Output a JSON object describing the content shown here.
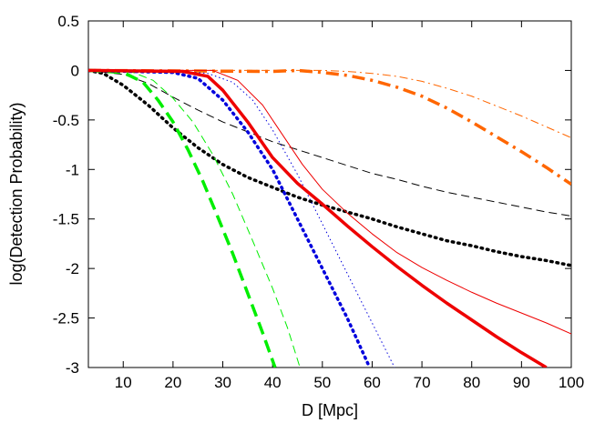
{
  "chart_data": {
    "type": "line",
    "xlabel": "D [Mpc]",
    "ylabel": "log(Detection Probability)",
    "xlim": [
      3,
      100
    ],
    "ylim": [
      -3,
      0.5
    ],
    "grid": false,
    "legend": "none",
    "xticks": [
      10,
      20,
      30,
      40,
      50,
      60,
      70,
      80,
      90,
      100
    ],
    "yticks": [
      0.5,
      0,
      -0.5,
      -1,
      -1.5,
      -2,
      -2.5,
      -3
    ],
    "xtick_labels": [
      "10",
      "20",
      "30",
      "40",
      "50",
      "60",
      "70",
      "80",
      "90",
      "100"
    ],
    "ytick_labels": [
      "0.5",
      "0",
      "-0.5",
      "-1",
      "-1.5",
      "-2",
      "-2.5",
      "-3"
    ],
    "series": [
      {
        "color": "#ff6600",
        "style": "dash-dot",
        "weight": "thin",
        "x": [
          3,
          40,
          50,
          55,
          60,
          65,
          70,
          75,
          80,
          85,
          90,
          95,
          100
        ],
        "y": [
          0,
          0,
          0,
          -0.01,
          -0.03,
          -0.06,
          -0.11,
          -0.18,
          -0.26,
          -0.36,
          -0.46,
          -0.57,
          -0.68
        ]
      },
      {
        "color": "#ff6600",
        "style": "dash-dot",
        "weight": "thick",
        "x": [
          3,
          40,
          45,
          50,
          55,
          60,
          65,
          70,
          75,
          80,
          85,
          90,
          95,
          100
        ],
        "y": [
          0,
          -0.01,
          0,
          -0.02,
          -0.05,
          -0.1,
          -0.17,
          -0.26,
          -0.38,
          -0.52,
          -0.67,
          -0.82,
          -0.98,
          -1.15
        ]
      },
      {
        "color": "#000000",
        "style": "dotted",
        "weight": "thick",
        "x": [
          3,
          6,
          10,
          15,
          20,
          25,
          30,
          35,
          40,
          45,
          50,
          55,
          60,
          65,
          70,
          75,
          80,
          85,
          90,
          95,
          100
        ],
        "y": [
          0,
          -0.03,
          -0.15,
          -0.35,
          -0.58,
          -0.78,
          -0.95,
          -1.08,
          -1.18,
          -1.28,
          -1.36,
          -1.43,
          -1.5,
          -1.58,
          -1.65,
          -1.72,
          -1.77,
          -1.83,
          -1.88,
          -1.92,
          -1.97
        ]
      },
      {
        "color": "#000000",
        "style": "dashed",
        "weight": "thin",
        "x": [
          3,
          10,
          15,
          20,
          25,
          30,
          35,
          40,
          45,
          50,
          55,
          60,
          65,
          70,
          75,
          80,
          85,
          90,
          95,
          100
        ],
        "y": [
          0,
          -0.04,
          -0.13,
          -0.27,
          -0.4,
          -0.52,
          -0.62,
          -0.72,
          -0.8,
          -0.88,
          -0.96,
          -1.04,
          -1.1,
          -1.17,
          -1.23,
          -1.28,
          -1.33,
          -1.38,
          -1.43,
          -1.47
        ]
      },
      {
        "color": "#00ee00",
        "style": "dashed",
        "weight": "thick",
        "x": [
          3,
          10,
          14,
          17,
          20,
          23,
          26,
          29,
          32,
          35,
          38,
          40.5
        ],
        "y": [
          0,
          -0.02,
          -0.12,
          -0.3,
          -0.52,
          -0.8,
          -1.12,
          -1.48,
          -1.85,
          -2.25,
          -2.65,
          -3
        ]
      },
      {
        "color": "#00ee00",
        "style": "dashed",
        "weight": "thin",
        "x": [
          3,
          12,
          16,
          20,
          24,
          28,
          32,
          36,
          40,
          43,
          45.5
        ],
        "y": [
          0,
          -0.02,
          -0.1,
          -0.28,
          -0.52,
          -0.85,
          -1.25,
          -1.72,
          -2.2,
          -2.6,
          -3
        ]
      },
      {
        "color": "#0000dd",
        "style": "dotted",
        "weight": "thick",
        "x": [
          3,
          20,
          25,
          30,
          35,
          40,
          45,
          50,
          55,
          59.5
        ],
        "y": [
          0,
          -0.02,
          -0.08,
          -0.3,
          -0.62,
          -1.0,
          -1.5,
          -2.0,
          -2.5,
          -3
        ]
      },
      {
        "color": "#0000dd",
        "style": "dotted",
        "weight": "thin",
        "x": [
          3,
          22,
          27,
          32,
          36,
          40,
          45,
          50,
          55,
          60,
          64.5
        ],
        "y": [
          0,
          -0.01,
          -0.03,
          -0.12,
          -0.3,
          -0.6,
          -1.05,
          -1.55,
          -2.05,
          -2.55,
          -3
        ]
      },
      {
        "color": "#ee0000",
        "style": "solid",
        "weight": "thick",
        "x": [
          3,
          22,
          27,
          30,
          35,
          40,
          45,
          50,
          55,
          60,
          65,
          70,
          75,
          80,
          85,
          90,
          95
        ],
        "y": [
          0,
          -0.01,
          -0.06,
          -0.2,
          -0.52,
          -0.88,
          -1.14,
          -1.35,
          -1.57,
          -1.78,
          -1.98,
          -2.17,
          -2.35,
          -2.52,
          -2.69,
          -2.85,
          -3
        ]
      },
      {
        "color": "#ee0000",
        "style": "solid",
        "weight": "thin",
        "x": [
          3,
          28,
          33,
          38,
          42,
          46,
          50,
          55,
          60,
          65,
          70,
          75,
          80,
          85,
          90,
          95,
          100
        ],
        "y": [
          0,
          0,
          -0.1,
          -0.35,
          -0.65,
          -0.95,
          -1.2,
          -1.44,
          -1.65,
          -1.84,
          -1.99,
          -2.12,
          -2.24,
          -2.35,
          -2.45,
          -2.55,
          -2.66
        ]
      }
    ]
  }
}
